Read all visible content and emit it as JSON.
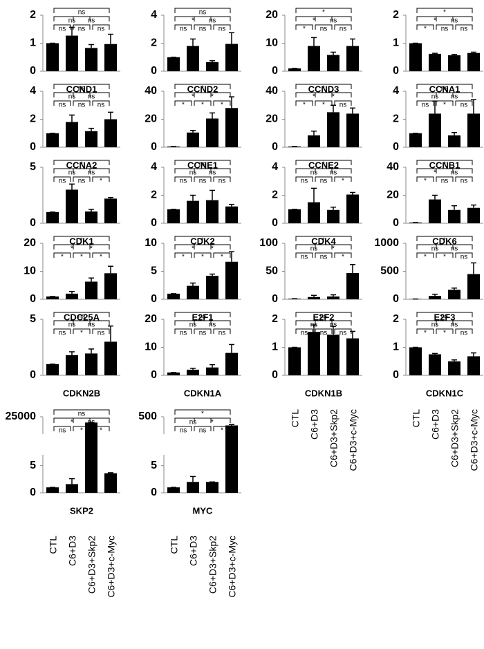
{
  "chart_data": [
    {
      "type": "bar",
      "title": "CCND1",
      "values": [
        1,
        1.27,
        0.83,
        0.97
      ],
      "errors": [
        0,
        0.3,
        0.12,
        0.35
      ],
      "ylim": [
        0,
        2
      ],
      "yticks": [
        0,
        1,
        2
      ],
      "color": "#000000",
      "comparisons": [
        [
          "ns",
          "ns",
          "ns"
        ],
        [
          "ns",
          "ns"
        ],
        [
          "ns"
        ]
      ]
    },
    {
      "type": "bar",
      "title": "CCND2",
      "values": [
        1,
        1.8,
        0.65,
        1.95
      ],
      "errors": [
        0,
        0.5,
        0.1,
        0.8
      ],
      "ylim": [
        0,
        4
      ],
      "yticks": [
        0,
        2,
        4
      ],
      "color": "#000000",
      "comparisons": [
        [
          "ns",
          "ns",
          "ns"
        ],
        [
          "*",
          "ns"
        ],
        [
          "ns"
        ]
      ]
    },
    {
      "type": "bar",
      "title": "CCND3",
      "values": [
        1,
        9,
        5.8,
        9
      ],
      "errors": [
        0,
        3,
        1,
        2.5
      ],
      "ylim": [
        0,
        20
      ],
      "yticks": [
        0,
        10,
        20
      ],
      "color": "#000000",
      "comparisons": [
        [
          "*",
          "ns",
          "ns"
        ],
        [
          "*",
          "ns"
        ],
        [
          "*"
        ]
      ]
    },
    {
      "type": "bar",
      "title": "CCNA1",
      "values": [
        1,
        0.62,
        0.57,
        0.65
      ],
      "errors": [
        0,
        0.02,
        0.03,
        0.03
      ],
      "ylim": [
        0,
        2
      ],
      "yticks": [
        0,
        1,
        2
      ],
      "color": "#000000",
      "comparisons": [
        [
          "*",
          "ns",
          "ns"
        ],
        [
          "*",
          "ns"
        ],
        [
          "*"
        ]
      ]
    },
    {
      "type": "bar",
      "title": "CCNA2",
      "values": [
        1,
        1.8,
        1.15,
        2
      ],
      "errors": [
        0,
        0.5,
        0.2,
        0.5
      ],
      "ylim": [
        0,
        4
      ],
      "yticks": [
        0,
        2,
        4
      ],
      "color": "#000000",
      "comparisons": [
        [
          "ns",
          "ns",
          "ns"
        ],
        [
          "ns",
          "ns"
        ],
        [
          "ns"
        ]
      ]
    },
    {
      "type": "bar",
      "title": "CCNE1",
      "values": [
        0.5,
        10.5,
        20.5,
        28
      ],
      "errors": [
        0,
        1.5,
        4,
        8
      ],
      "ylim": [
        0,
        40
      ],
      "yticks": [
        0,
        20,
        40
      ],
      "color": "#000000",
      "comparisons": [
        [
          "*",
          "*",
          "*"
        ],
        [
          "*",
          "*"
        ],
        [
          "*"
        ]
      ]
    },
    {
      "type": "bar",
      "title": "CCNE2",
      "values": [
        0.5,
        8.5,
        25,
        24
      ],
      "errors": [
        0,
        3,
        5,
        4
      ],
      "ylim": [
        0,
        40
      ],
      "yticks": [
        0,
        20,
        40
      ],
      "color": "#000000",
      "comparisons": [
        [
          "*",
          "*",
          "ns"
        ],
        [
          "*",
          "*"
        ],
        [
          "*"
        ]
      ]
    },
    {
      "type": "bar",
      "title": "CCNB1",
      "values": [
        1,
        2.4,
        0.85,
        2.4
      ],
      "errors": [
        0,
        0.9,
        0.2,
        1
      ],
      "ylim": [
        0,
        4
      ],
      "yticks": [
        0,
        2,
        4
      ],
      "color": "#000000",
      "comparisons": [
        [
          "ns",
          "*",
          "ns"
        ],
        [
          "ns",
          "ns"
        ],
        [
          "ns"
        ]
      ]
    },
    {
      "type": "bar",
      "title": "CDK1",
      "values": [
        1,
        3,
        1.05,
        2.2
      ],
      "errors": [
        0,
        0.5,
        0.2,
        0.1
      ],
      "ylim": [
        0,
        5
      ],
      "yticks": [
        0,
        5
      ],
      "color": "#000000",
      "comparisons": [
        [
          "ns",
          "ns",
          "*"
        ],
        [
          "ns",
          "ns"
        ],
        [
          "*"
        ]
      ]
    },
    {
      "type": "bar",
      "title": "CDK2",
      "values": [
        1,
        1.6,
        1.65,
        1.2
      ],
      "errors": [
        0,
        0.4,
        0.7,
        0.15
      ],
      "ylim": [
        0,
        4
      ],
      "yticks": [
        0,
        2,
        4
      ],
      "color": "#000000",
      "comparisons": [
        [
          "ns",
          "ns",
          "ns"
        ],
        [
          "ns",
          "ns"
        ],
        [
          "ns"
        ]
      ]
    },
    {
      "type": "bar",
      "title": "CDK4",
      "values": [
        1,
        1.5,
        0.95,
        2.05
      ],
      "errors": [
        0,
        1,
        0.2,
        0.15
      ],
      "ylim": [
        0,
        4
      ],
      "yticks": [
        0,
        2,
        4
      ],
      "color": "#000000",
      "comparisons": [
        [
          "ns",
          "ns",
          "*"
        ],
        [
          "ns",
          "ns"
        ],
        [
          "*"
        ]
      ]
    },
    {
      "type": "bar",
      "title": "CDK6",
      "values": [
        0.5,
        17,
        9.5,
        11
      ],
      "errors": [
        0,
        3,
        3,
        2
      ],
      "ylim": [
        0,
        40
      ],
      "yticks": [
        0,
        20,
        40
      ],
      "color": "#000000",
      "comparisons": [
        [
          "*",
          "ns",
          "ns"
        ],
        [
          "*",
          "ns"
        ],
        [
          "*"
        ]
      ]
    },
    {
      "type": "bar",
      "title": "CDC25A",
      "values": [
        1,
        2,
        6.3,
        9.3
      ],
      "errors": [
        0,
        0.8,
        1.3,
        2.5
      ],
      "ylim": [
        0,
        20
      ],
      "yticks": [
        0,
        10,
        20
      ],
      "color": "#000000",
      "comparisons": [
        [
          "*",
          "*",
          "*"
        ],
        [
          "*",
          "*"
        ],
        [
          "*"
        ]
      ]
    },
    {
      "type": "bar",
      "title": "E2F1",
      "values": [
        1,
        2.4,
        4.2,
        6.7
      ],
      "errors": [
        0,
        0.5,
        0.3,
        1.8
      ],
      "ylim": [
        0,
        10
      ],
      "yticks": [
        0,
        5,
        10
      ],
      "color": "#000000",
      "comparisons": [
        [
          "*",
          "*",
          "*"
        ],
        [
          "*",
          "*"
        ],
        [
          "*"
        ]
      ]
    },
    {
      "type": "bar",
      "title": "E2F2",
      "values": [
        1,
        4,
        5,
        47
      ],
      "errors": [
        0,
        3,
        3,
        15
      ],
      "ylim": [
        0,
        100
      ],
      "yticks": [
        0,
        50,
        100
      ],
      "color": "#000000",
      "comparisons": [
        [
          "ns",
          "ns",
          "*"
        ],
        [
          "ns",
          "*"
        ],
        [
          "*"
        ]
      ]
    },
    {
      "type": "bar",
      "title": "E2F3",
      "values": [
        5,
        60,
        170,
        450
      ],
      "errors": [
        0,
        30,
        30,
        200
      ],
      "ylim": [
        0,
        1000
      ],
      "yticks": [
        0,
        500,
        1000
      ],
      "color": "#000000",
      "comparisons": [
        [
          "*",
          "*",
          "ns"
        ],
        [
          "ns",
          "ns"
        ],
        [
          "*"
        ]
      ]
    },
    {
      "type": "bar",
      "title": "CDKN2B",
      "values": [
        1,
        1.8,
        1.95,
        3
      ],
      "errors": [
        0,
        0.3,
        0.4,
        1.4
      ],
      "ylim": [
        0,
        5
      ],
      "yticks": [
        0,
        5
      ],
      "color": "#000000",
      "comparisons": [
        [
          "ns",
          "*",
          "ns"
        ],
        [
          "ns",
          "ns"
        ],
        [
          "ns"
        ]
      ]
    },
    {
      "type": "bar",
      "title": "CDKN1A",
      "values": [
        1,
        2,
        2.8,
        8
      ],
      "errors": [
        0,
        0.5,
        1,
        3
      ],
      "ylim": [
        0,
        20
      ],
      "yticks": [
        0,
        10,
        20
      ],
      "color": "#000000",
      "comparisons": [
        [
          "ns",
          "ns",
          "ns"
        ],
        [
          "ns",
          "ns"
        ],
        [
          "ns"
        ]
      ]
    },
    {
      "type": "bar",
      "title": "CDKN1B",
      "categories": [
        "CTL",
        "C6+D3",
        "C6+D3+Skp2",
        "C6+D3+c-Myc"
      ],
      "values": [
        1,
        1.55,
        1.45,
        1.32
      ],
      "errors": [
        0,
        0.25,
        0.3,
        0.25
      ],
      "ylim": [
        0,
        2
      ],
      "yticks": [
        0,
        1,
        2
      ],
      "color": "#000000",
      "comparisons": [
        [
          "ns",
          "ns",
          "ns"
        ],
        [
          "ns",
          "ns"
        ],
        [
          "ns"
        ]
      ]
    },
    {
      "type": "bar",
      "title": "CDKN1C",
      "categories": [
        "CTL",
        "C6+D3",
        "C6+D3+Skp2",
        "C6+D3+c-Myc"
      ],
      "values": [
        1,
        0.75,
        0.5,
        0.68
      ],
      "errors": [
        0,
        0.03,
        0.05,
        0.12
      ],
      "ylim": [
        0,
        2
      ],
      "yticks": [
        0,
        1,
        2
      ],
      "color": "#000000",
      "comparisons": [
        [
          "*",
          "*",
          "ns"
        ],
        [
          "ns",
          "ns"
        ],
        [
          "ns"
        ]
      ]
    },
    {
      "type": "bar",
      "title": "SKP2",
      "categories": [
        "CTL",
        "C6+D3",
        "C6+D3+Skp2",
        "C6+D3+c-Myc"
      ],
      "values": [
        1,
        1.6,
        24000,
        3.6
      ],
      "errors": [
        0,
        1,
        0,
        0.1
      ],
      "ylim": [
        0,
        25000
      ],
      "ybreak": [
        7,
        22000
      ],
      "yticks": [
        0,
        5,
        25000
      ],
      "color": "#000000",
      "comparisons": [
        [
          "ns",
          "*",
          "*"
        ],
        [
          "*",
          "ns"
        ],
        [
          "ns"
        ]
      ]
    },
    {
      "type": "bar",
      "title": "MYC",
      "categories": [
        "CTL",
        "C6+D3",
        "C6+D3+Skp2",
        "C6+D3+c-Myc"
      ],
      "values": [
        1,
        2,
        2,
        400
      ],
      "errors": [
        0,
        1,
        0,
        10
      ],
      "ylim": [
        0,
        500
      ],
      "ybreak": [
        7,
        300
      ],
      "yticks": [
        0,
        5,
        500
      ],
      "color": "#000000",
      "comparisons": [
        [
          "ns",
          "ns",
          "*"
        ],
        [
          "ns",
          "*"
        ],
        [
          "*"
        ]
      ]
    }
  ]
}
